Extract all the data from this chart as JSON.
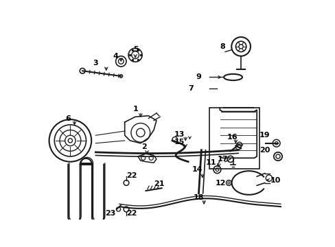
{
  "bg_color": "#ffffff",
  "line_color": "#1a1a1a",
  "label_color": "#000000",
  "figsize": [
    4.89,
    3.6
  ],
  "dpi": 100
}
